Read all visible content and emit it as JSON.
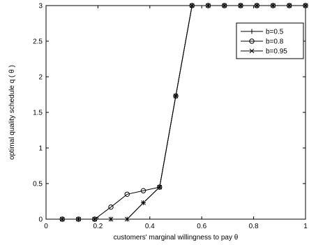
{
  "chart_data": {
    "type": "line",
    "title": "",
    "xlabel": "customers' marginal willingness to pay θ",
    "ylabel": "optimal quality schedule q ( θ )",
    "xlim": [
      0,
      1
    ],
    "ylim": [
      0,
      3
    ],
    "xticks": [
      0,
      0.2,
      0.4,
      0.6,
      0.8,
      1
    ],
    "yticks": [
      0,
      0.5,
      1,
      1.5,
      2,
      2.5,
      3
    ],
    "xtick_labels": [
      "0",
      "0.2",
      "0.4",
      "0.6",
      "0.8",
      "1"
    ],
    "ytick_labels": [
      "0",
      "0.5",
      "1",
      "1.5",
      "2",
      "2.5",
      "3"
    ],
    "grid": false,
    "legend_position": "top-right",
    "series": [
      {
        "name": "b=0.5",
        "marker": "plus",
        "color": "#000000",
        "x": [
          0.0625,
          0.125,
          0.1875,
          0.25,
          0.3125,
          0.375,
          0.4375,
          0.5,
          0.5625,
          0.625,
          0.6875,
          0.75,
          0.8125,
          0.875,
          0.9375,
          1.0
        ],
        "y": [
          0,
          0,
          0,
          0,
          0,
          0.23,
          0.45,
          1.73,
          3,
          3,
          3,
          3,
          3,
          3,
          3,
          3
        ]
      },
      {
        "name": "b=0.8",
        "marker": "circle",
        "color": "#000000",
        "x": [
          0.0625,
          0.125,
          0.1875,
          0.25,
          0.3125,
          0.375,
          0.4375,
          0.5,
          0.5625,
          0.625,
          0.6875,
          0.75,
          0.8125,
          0.875,
          0.9375,
          1.0
        ],
        "y": [
          0,
          0,
          0,
          0.17,
          0.35,
          0.4,
          0.45,
          1.73,
          3,
          3,
          3,
          3,
          3,
          3,
          3,
          3
        ]
      },
      {
        "name": "b=0.95",
        "marker": "x",
        "color": "#000000",
        "x": [
          0.0625,
          0.125,
          0.1875,
          0.25,
          0.3125,
          0.375,
          0.4375,
          0.5,
          0.5625,
          0.625,
          0.6875,
          0.75,
          0.8125,
          0.875,
          0.9375,
          1.0
        ],
        "y": [
          0,
          0,
          0,
          0,
          0,
          0.23,
          0.45,
          1.73,
          3,
          3,
          3,
          3,
          3,
          3,
          3,
          3
        ]
      }
    ]
  }
}
